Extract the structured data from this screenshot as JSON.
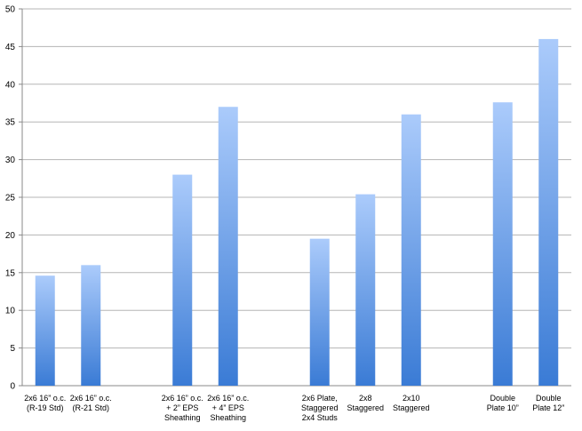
{
  "chart_data": {
    "type": "bar",
    "categories": [
      "2x6 16” o.c.\n(R-19 Std)",
      "2x6 16” o.c.\n(R-21 Std)",
      null,
      "2x6 16” o.c.\n+ 2” EPS\nSheathing",
      "2x6 16” o.c.\n+ 4” EPS\nSheathing",
      null,
      "2x6 Plate,\nStaggered\n2x4 Studs",
      "2x8\nStaggered",
      "2x10\nStaggered",
      null,
      "Double\nPlate 10”",
      "Double\nPlate 12”"
    ],
    "values": [
      14.6,
      16,
      null,
      28,
      37,
      null,
      19.5,
      25.4,
      36,
      null,
      37.6,
      46
    ],
    "color": [
      "#abcbfb",
      "#3a7bd5"
    ],
    "ylim": [
      0,
      50
    ],
    "yticks": [
      0,
      5,
      10,
      15,
      20,
      25,
      30,
      35,
      40,
      45,
      50
    ],
    "grid": true
  }
}
